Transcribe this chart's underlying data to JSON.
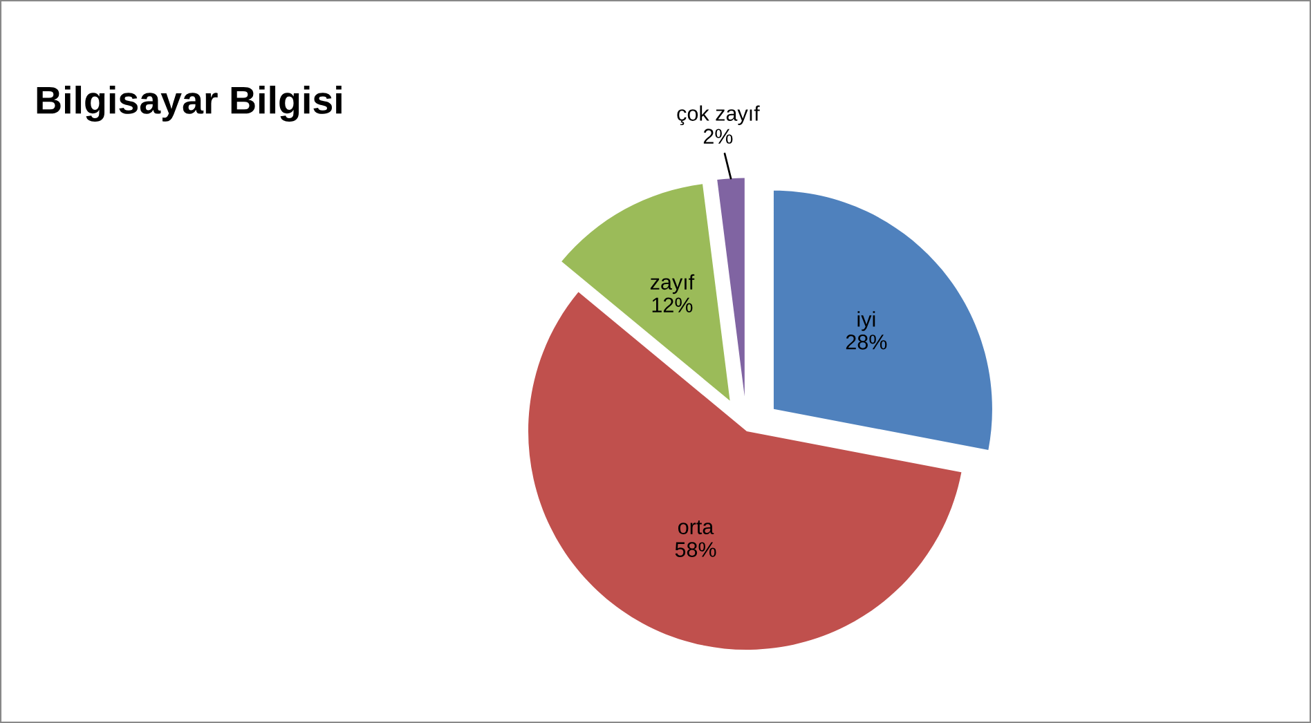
{
  "chart_data": {
    "type": "pie",
    "title": "Bilgisayar Bilgisi",
    "categories": [
      "iyi",
      "orta",
      "zayıf",
      "çok zayıf"
    ],
    "values": [
      28,
      58,
      12,
      2
    ],
    "colors": [
      "#4f81bd",
      "#c0504d",
      "#9bbb59",
      "#8064a2"
    ],
    "value_labels": [
      "28%",
      "58%",
      "12%",
      "2%"
    ],
    "legend": false
  }
}
